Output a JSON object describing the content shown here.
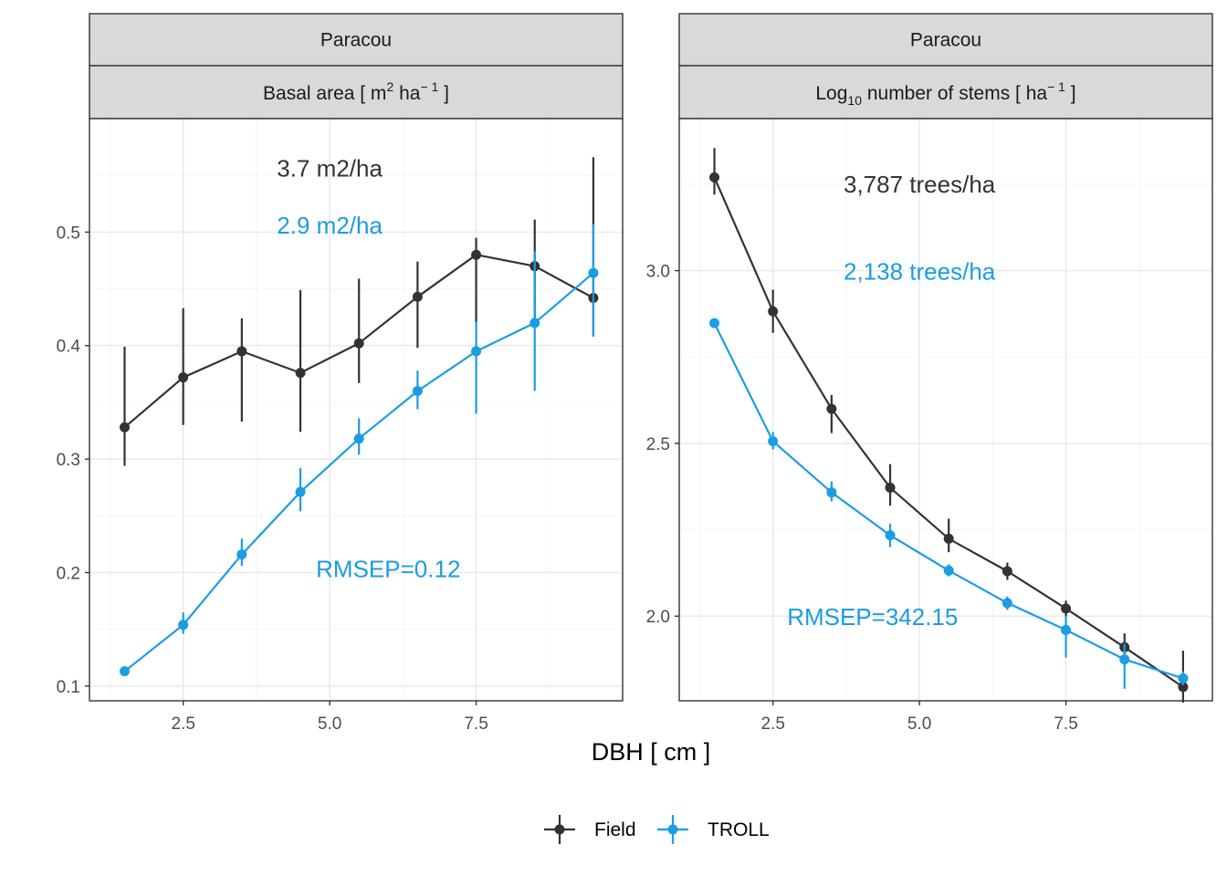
{
  "colors": {
    "field": "#333333",
    "troll": "#1b9de2",
    "strip_bg": "#d9d9d9",
    "grid_major": "#ebebeb",
    "grid_minor": "#f5f5f5"
  },
  "chart_data": [
    {
      "type": "line",
      "strip_top": "Paracou",
      "strip_bottom": {
        "text_before": "Basal area [ m",
        "sup1": "2",
        "text_middle": " ha",
        "sup2": "− 1",
        "text_after": " ]"
      },
      "x": [
        1.5,
        2.5,
        3.5,
        4.5,
        5.5,
        6.5,
        7.5,
        8.5,
        9.5
      ],
      "xlim": [
        0.9,
        10.0
      ],
      "xticks": [
        2.5,
        5.0,
        7.5
      ],
      "xtick_labels": [
        "2.5",
        "5.0",
        "7.5"
      ],
      "ylim": [
        0.087,
        0.6
      ],
      "yticks": [
        0.1,
        0.2,
        0.3,
        0.4,
        0.5
      ],
      "ytick_labels": [
        "0.1",
        "0.2",
        "0.3",
        "0.4",
        "0.5"
      ],
      "series": [
        {
          "name": "Field",
          "color_key": "field",
          "values": [
            0.328,
            0.372,
            0.395,
            0.376,
            0.402,
            0.443,
            0.48,
            0.47,
            0.442
          ],
          "err_low": [
            0.294,
            0.33,
            0.333,
            0.324,
            0.367,
            0.398,
            0.42,
            0.421,
            0.408
          ],
          "err_high": [
            0.399,
            0.433,
            0.424,
            0.449,
            0.459,
            0.474,
            0.495,
            0.511,
            0.566
          ]
        },
        {
          "name": "TROLL",
          "color_key": "troll",
          "values": [
            0.113,
            0.154,
            0.216,
            0.271,
            0.318,
            0.36,
            0.395,
            0.42,
            0.464
          ],
          "err_low": [
            0.111,
            0.146,
            0.206,
            0.254,
            0.304,
            0.344,
            0.34,
            0.36,
            0.408
          ],
          "err_high": [
            0.115,
            0.165,
            0.23,
            0.292,
            0.336,
            0.378,
            0.421,
            0.483,
            0.507
          ]
        }
      ],
      "annotations": [
        {
          "text": "3.7 m2/ha",
          "x": 5.0,
          "y": 0.556,
          "color_key": "field",
          "anchor": "middle"
        },
        {
          "text": "2.9 m2/ha",
          "x": 5.0,
          "y": 0.506,
          "color_key": "troll",
          "anchor": "middle"
        },
        {
          "text": "RMSEP=0.12",
          "x": 6.0,
          "y": 0.203,
          "color_key": "troll",
          "anchor": "middle"
        }
      ]
    },
    {
      "type": "line",
      "strip_top": "Paracou",
      "strip_bottom": {
        "text_before": "Log",
        "sub": "10",
        "text_middle": " number of stems [ ha",
        "sup2": "− 1",
        "text_after": " ]"
      },
      "x": [
        1.5,
        2.5,
        3.5,
        4.5,
        5.5,
        6.5,
        7.5,
        8.5,
        9.5
      ],
      "xlim": [
        0.9,
        10.0
      ],
      "xticks": [
        2.5,
        5.0,
        7.5
      ],
      "xtick_labels": [
        "2.5",
        "5.0",
        "7.5"
      ],
      "ylim": [
        1.755,
        3.44
      ],
      "yticks": [
        2.0,
        2.5,
        3.0
      ],
      "ytick_labels": [
        "2.0",
        "2.5",
        "3.0"
      ],
      "series": [
        {
          "name": "Field",
          "color_key": "field",
          "values": [
            3.27,
            2.882,
            2.6,
            2.372,
            2.224,
            2.13,
            2.022,
            1.91,
            1.795
          ],
          "err_low": [
            3.22,
            2.82,
            2.53,
            2.32,
            2.185,
            2.105,
            2.0,
            1.87,
            1.75
          ],
          "err_high": [
            3.355,
            2.945,
            2.64,
            2.44,
            2.282,
            2.155,
            2.045,
            1.95,
            1.9
          ]
        },
        {
          "name": "TROLL",
          "color_key": "troll",
          "values": [
            2.848,
            2.506,
            2.358,
            2.234,
            2.132,
            2.038,
            1.96,
            1.875,
            1.82
          ],
          "err_low": [
            2.838,
            2.482,
            2.332,
            2.2,
            2.115,
            2.018,
            1.88,
            1.79,
            1.8
          ],
          "err_high": [
            2.858,
            2.533,
            2.39,
            2.268,
            2.15,
            2.057,
            2.0,
            1.92,
            1.84
          ]
        }
      ],
      "annotations": [
        {
          "text": "3,787 trees/ha",
          "x": 5.0,
          "y": 3.25,
          "color_key": "field",
          "anchor": "middle"
        },
        {
          "text": "2,138 trees/ha",
          "x": 5.0,
          "y": 2.998,
          "color_key": "troll",
          "anchor": "middle"
        },
        {
          "text": "RMSEP=342.15",
          "x": 4.2,
          "y": 1.998,
          "color_key": "troll",
          "anchor": "middle"
        }
      ]
    }
  ],
  "xlabel": "DBH [ cm ]",
  "legend": {
    "position": "bottom",
    "items": [
      {
        "name": "Field",
        "color_key": "field"
      },
      {
        "name": "TROLL",
        "color_key": "troll"
      }
    ]
  }
}
